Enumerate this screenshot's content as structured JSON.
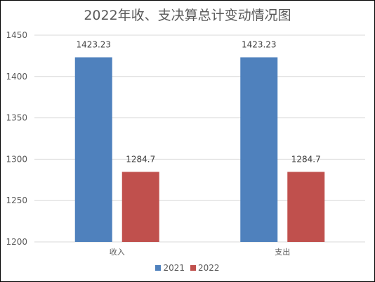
{
  "chart_data": {
    "type": "bar",
    "title": "2022年收、支决算总计变动情况图",
    "categories": [
      "收入",
      "支出"
    ],
    "series": [
      {
        "name": "2021",
        "values": [
          1423.23,
          1423.23
        ],
        "labels": [
          "1423.23",
          "1423.23"
        ],
        "color": "#4f81bd"
      },
      {
        "name": "2022",
        "values": [
          1284.7,
          1284.7
        ],
        "labels": [
          "1284.7",
          "1284.7"
        ],
        "color": "#c0504d"
      }
    ],
    "ylim": [
      1200,
      1450
    ],
    "yticks": [
      1200,
      1250,
      1300,
      1350,
      1400,
      1450
    ],
    "ytick_labels": [
      "1200",
      "1250",
      "1300",
      "1350",
      "1400",
      "1450"
    ],
    "grid": true,
    "legend_position": "bottom"
  }
}
